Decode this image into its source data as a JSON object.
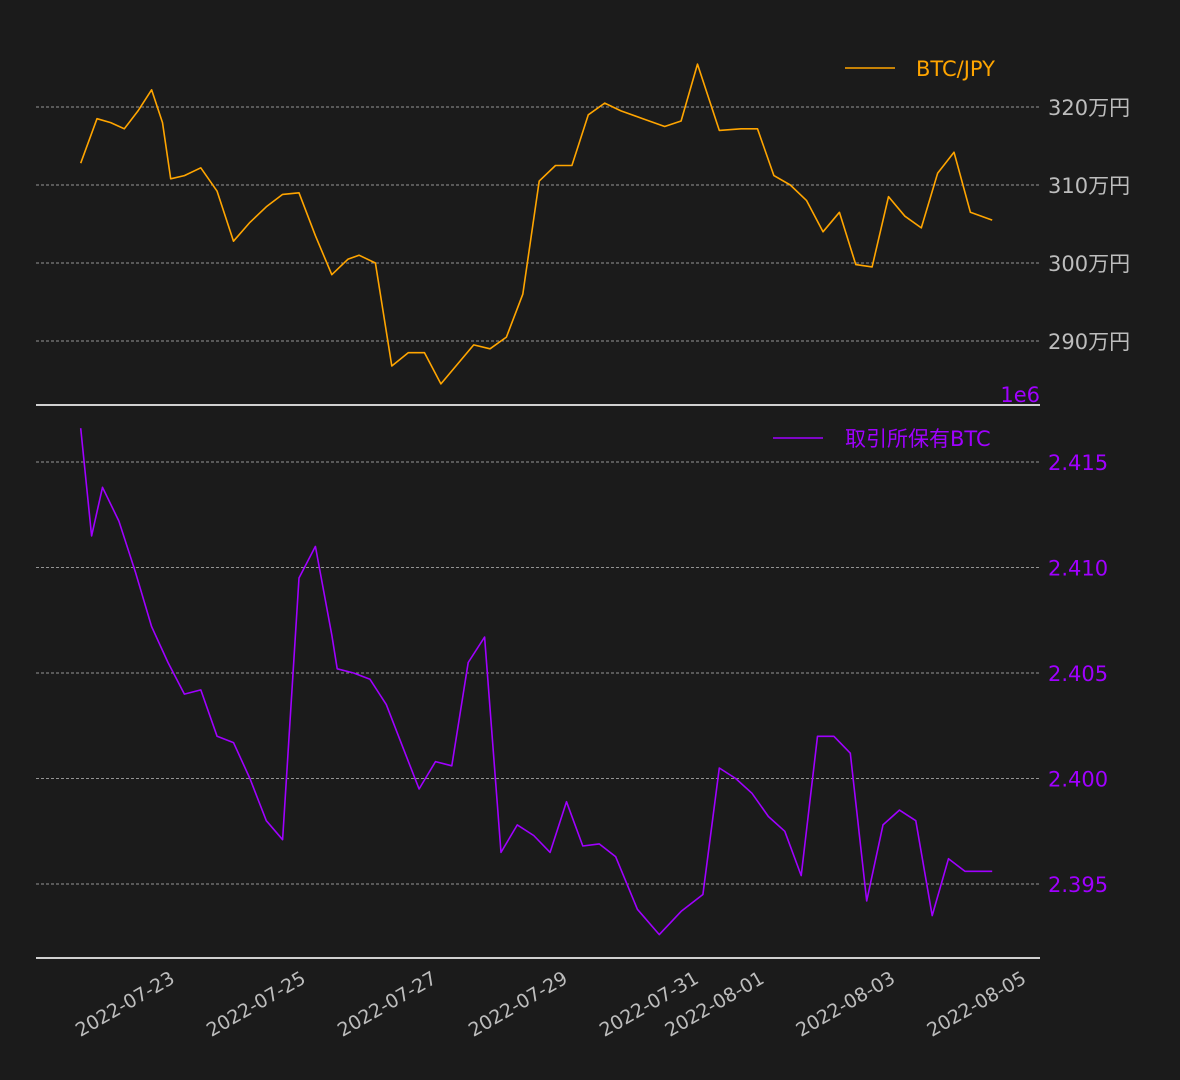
{
  "colors": {
    "background": "#1b1b1b",
    "grid": "#bdbdbd",
    "spine": "#d0d0d0",
    "axis_text": "#bdbdbd",
    "btc_jpy": "#ffa500",
    "exchange_btc": "#a000ff"
  },
  "top_panel": {
    "legend_label": "BTC/JPY",
    "yticks": [
      {
        "value": 3200000,
        "label": "320万円"
      },
      {
        "value": 3100000,
        "label": "310万円"
      },
      {
        "value": 3000000,
        "label": "300万円"
      },
      {
        "value": 2900000,
        "label": "290万円"
      }
    ]
  },
  "bottom_panel": {
    "legend_label": "取引所保有BTC",
    "offset_label": "1e6",
    "yticks": [
      {
        "value": 2.415,
        "label": "2.415"
      },
      {
        "value": 2.41,
        "label": "2.410"
      },
      {
        "value": 2.405,
        "label": "2.405"
      },
      {
        "value": 2.4,
        "label": "2.400"
      },
      {
        "value": 2.395,
        "label": "2.395"
      }
    ]
  },
  "xaxis": {
    "ticks": [
      "2022-07-23",
      "2022-07-25",
      "2022-07-27",
      "2022-07-29",
      "2022-07-31",
      "2022-08-01",
      "2022-08-03",
      "2022-08-05"
    ]
  },
  "chart_data": [
    {
      "type": "line",
      "title": "",
      "legend": [
        "BTC/JPY"
      ],
      "ylabel": "",
      "ylim": [
        2830000,
        3280000
      ],
      "y_unit": "JPY (labels in 万円)",
      "grid": true,
      "legend_position": "upper right",
      "x_range": [
        "2022-07-21",
        "2022-08-05"
      ],
      "series": [
        {
          "name": "BTC/JPY",
          "color": "#ffa500",
          "x": [
            "2022-07-21 16:00",
            "2022-07-21 22:00",
            "2022-07-22 03:00",
            "2022-07-22 08:00",
            "2022-07-22 13:00",
            "2022-07-22 18:00",
            "2022-07-22 22:00",
            "2022-07-23 01:00",
            "2022-07-23 06:00",
            "2022-07-23 12:00",
            "2022-07-23 18:00",
            "2022-07-24 00:00",
            "2022-07-24 06:00",
            "2022-07-24 12:00",
            "2022-07-24 18:00",
            "2022-07-25 00:00",
            "2022-07-25 06:00",
            "2022-07-25 12:00",
            "2022-07-25 18:00",
            "2022-07-25 22:00",
            "2022-07-26 04:00",
            "2022-07-26 10:00",
            "2022-07-26 16:00",
            "2022-07-26 22:00",
            "2022-07-27 04:00",
            "2022-07-27 10:00",
            "2022-07-27 16:00",
            "2022-07-27 22:00",
            "2022-07-28 04:00",
            "2022-07-28 10:00",
            "2022-07-28 16:00",
            "2022-07-28 22:00",
            "2022-07-29 04:00",
            "2022-07-29 10:00",
            "2022-07-29 16:00",
            "2022-07-29 22:00",
            "2022-07-30 06:00",
            "2022-07-30 14:00",
            "2022-07-30 20:00",
            "2022-07-31 02:00",
            "2022-07-31 10:00",
            "2022-07-31 18:00",
            "2022-08-01 00:00",
            "2022-08-01 06:00",
            "2022-08-01 12:00",
            "2022-08-01 18:00",
            "2022-08-02 00:00",
            "2022-08-02 06:00",
            "2022-08-02 12:00",
            "2022-08-02 18:00",
            "2022-08-03 00:00",
            "2022-08-03 06:00",
            "2022-08-03 12:00",
            "2022-08-03 18:00",
            "2022-08-04 00:00",
            "2022-08-04 06:00",
            "2022-08-04 14:00"
          ],
          "values": [
            3128000,
            3185000,
            3180000,
            3172000,
            3195000,
            3222000,
            3180000,
            3108000,
            3112000,
            3122000,
            3092000,
            3028000,
            3052000,
            3072000,
            3088000,
            3090000,
            3035000,
            2985000,
            3005000,
            3010000,
            3000000,
            2868000,
            2885000,
            2885000,
            2845000,
            2870000,
            2895000,
            2890000,
            2905000,
            2960000,
            3105000,
            3125000,
            3125000,
            3190000,
            3205000,
            3195000,
            3185000,
            3175000,
            3182000,
            3255000,
            3170000,
            3172000,
            3172000,
            3112000,
            3100000,
            3080000,
            3040000,
            3065000,
            2998000,
            2995000,
            3085000,
            3060000,
            3045000,
            3115000,
            3142000,
            3065000,
            3055000
          ],
          "units": "JPY"
        }
      ]
    },
    {
      "type": "line",
      "title": "",
      "legend": [
        "取引所保有BTC"
      ],
      "ylabel": "",
      "ylim": [
        2391500,
        2418500
      ],
      "y_scale_offset": "1e6",
      "grid": true,
      "legend_position": "upper right",
      "x_range": [
        "2022-07-21",
        "2022-08-05"
      ],
      "series": [
        {
          "name": "取引所保有BTC",
          "color": "#a000ff",
          "x": [
            "2022-07-21 16:00",
            "2022-07-21 20:00",
            "2022-07-22 00:00",
            "2022-07-22 06:00",
            "2022-07-22 12:00",
            "2022-07-22 18:00",
            "2022-07-23 00:00",
            "2022-07-23 06:00",
            "2022-07-23 12:00",
            "2022-07-23 18:00",
            "2022-07-24 00:00",
            "2022-07-24 06:00",
            "2022-07-24 12:00",
            "2022-07-24 18:00",
            "2022-07-25 00:00",
            "2022-07-25 06:00",
            "2022-07-25 12:00",
            "2022-07-25 14:00",
            "2022-07-25 20:00",
            "2022-07-26 02:00",
            "2022-07-26 08:00",
            "2022-07-26 14:00",
            "2022-07-26 20:00",
            "2022-07-27 02:00",
            "2022-07-27 08:00",
            "2022-07-27 14:00",
            "2022-07-27 20:00",
            "2022-07-28 02:00",
            "2022-07-28 08:00",
            "2022-07-28 14:00",
            "2022-07-28 20:00",
            "2022-07-29 02:00",
            "2022-07-29 08:00",
            "2022-07-29 14:00",
            "2022-07-29 20:00",
            "2022-07-30 04:00",
            "2022-07-30 12:00",
            "2022-07-30 20:00",
            "2022-07-31 04:00",
            "2022-07-31 10:00",
            "2022-07-31 16:00",
            "2022-07-31 22:00",
            "2022-08-01 04:00",
            "2022-08-01 10:00",
            "2022-08-01 16:00",
            "2022-08-01 22:00",
            "2022-08-02 04:00",
            "2022-08-02 10:00",
            "2022-08-02 16:00",
            "2022-08-02 22:00",
            "2022-08-03 04:00",
            "2022-08-03 10:00",
            "2022-08-03 16:00",
            "2022-08-03 22:00",
            "2022-08-04 04:00",
            "2022-08-04 10:00",
            "2022-08-04 14:00"
          ],
          "values": [
            2416600,
            2411500,
            2413800,
            2412200,
            2409800,
            2407200,
            2405500,
            2404000,
            2404200,
            2402000,
            2401700,
            2400000,
            2398000,
            2397100,
            2409500,
            2411000,
            2406800,
            2405200,
            2405000,
            2404700,
            2403500,
            2401500,
            2399500,
            2400800,
            2400600,
            2405500,
            2406700,
            2396500,
            2397800,
            2397300,
            2396500,
            2398900,
            2396800,
            2396900,
            2396300,
            2393800,
            2392600,
            2393700,
            2394500,
            2400500,
            2400000,
            2399300,
            2398200,
            2397500,
            2395400,
            2402000,
            2402000,
            2401200,
            2394200,
            2397800,
            2398500,
            2398000,
            2393500,
            2396200,
            2395600,
            2395600,
            2395600
          ],
          "units": "BTC"
        }
      ]
    }
  ]
}
